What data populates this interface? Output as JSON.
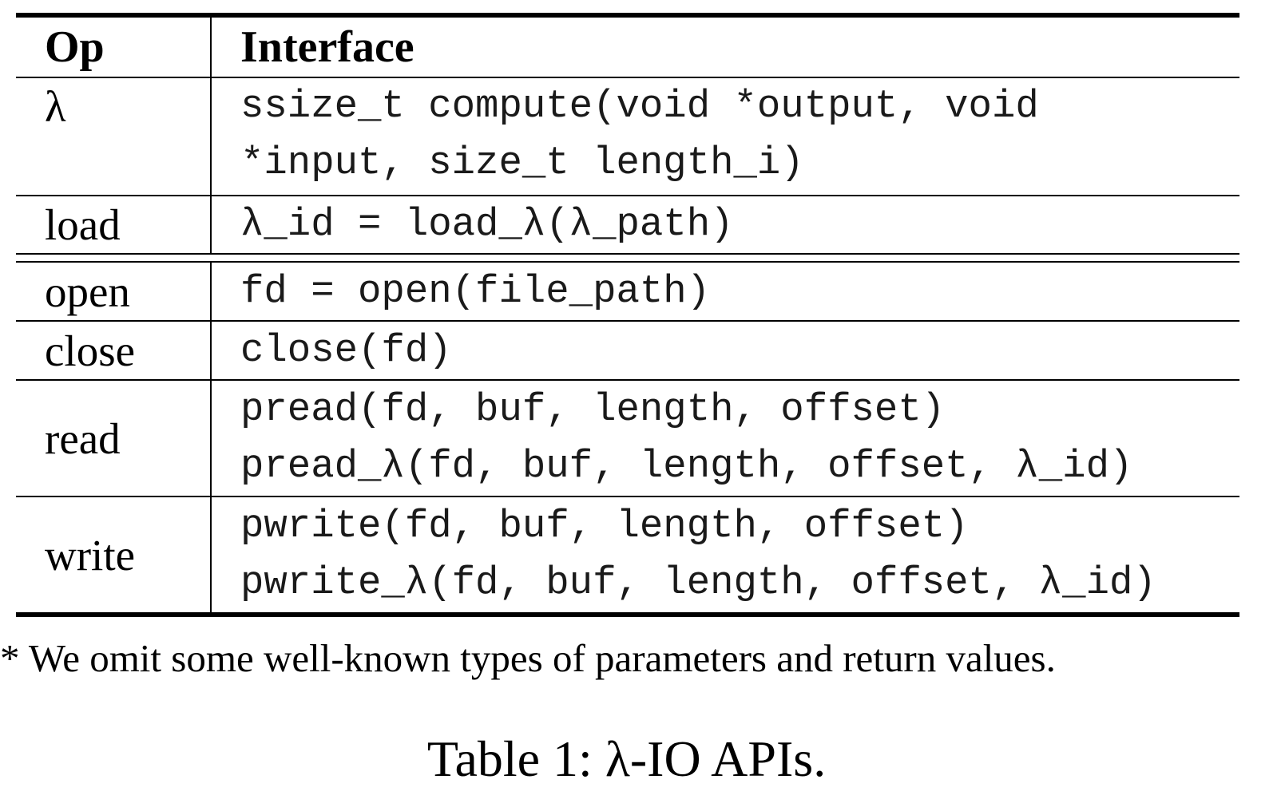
{
  "table": {
    "headers": {
      "op": "Op",
      "interface": "Interface"
    },
    "rows": [
      {
        "op": "λ",
        "interface": [
          "ssize_t compute(void *output, void",
          "*input, size_t length_i)"
        ]
      },
      {
        "op": "load",
        "interface": [
          "λ_id = load_λ(λ_path)"
        ]
      },
      {
        "op": "open",
        "interface": [
          "fd = open(file_path)"
        ]
      },
      {
        "op": "close",
        "interface": [
          "close(fd)"
        ]
      },
      {
        "op": "read",
        "interface": [
          "pread(fd, buf, length, offset)",
          "pread_λ(fd, buf, length, offset, λ_id)"
        ]
      },
      {
        "op": "write",
        "interface": [
          "pwrite(fd, buf, length, offset)",
          "pwrite_λ(fd, buf, length, offset, λ_id)"
        ]
      }
    ]
  },
  "footnote": "* We omit some well-known types of parameters and return values.",
  "caption": "Table 1: λ-IO APIs."
}
